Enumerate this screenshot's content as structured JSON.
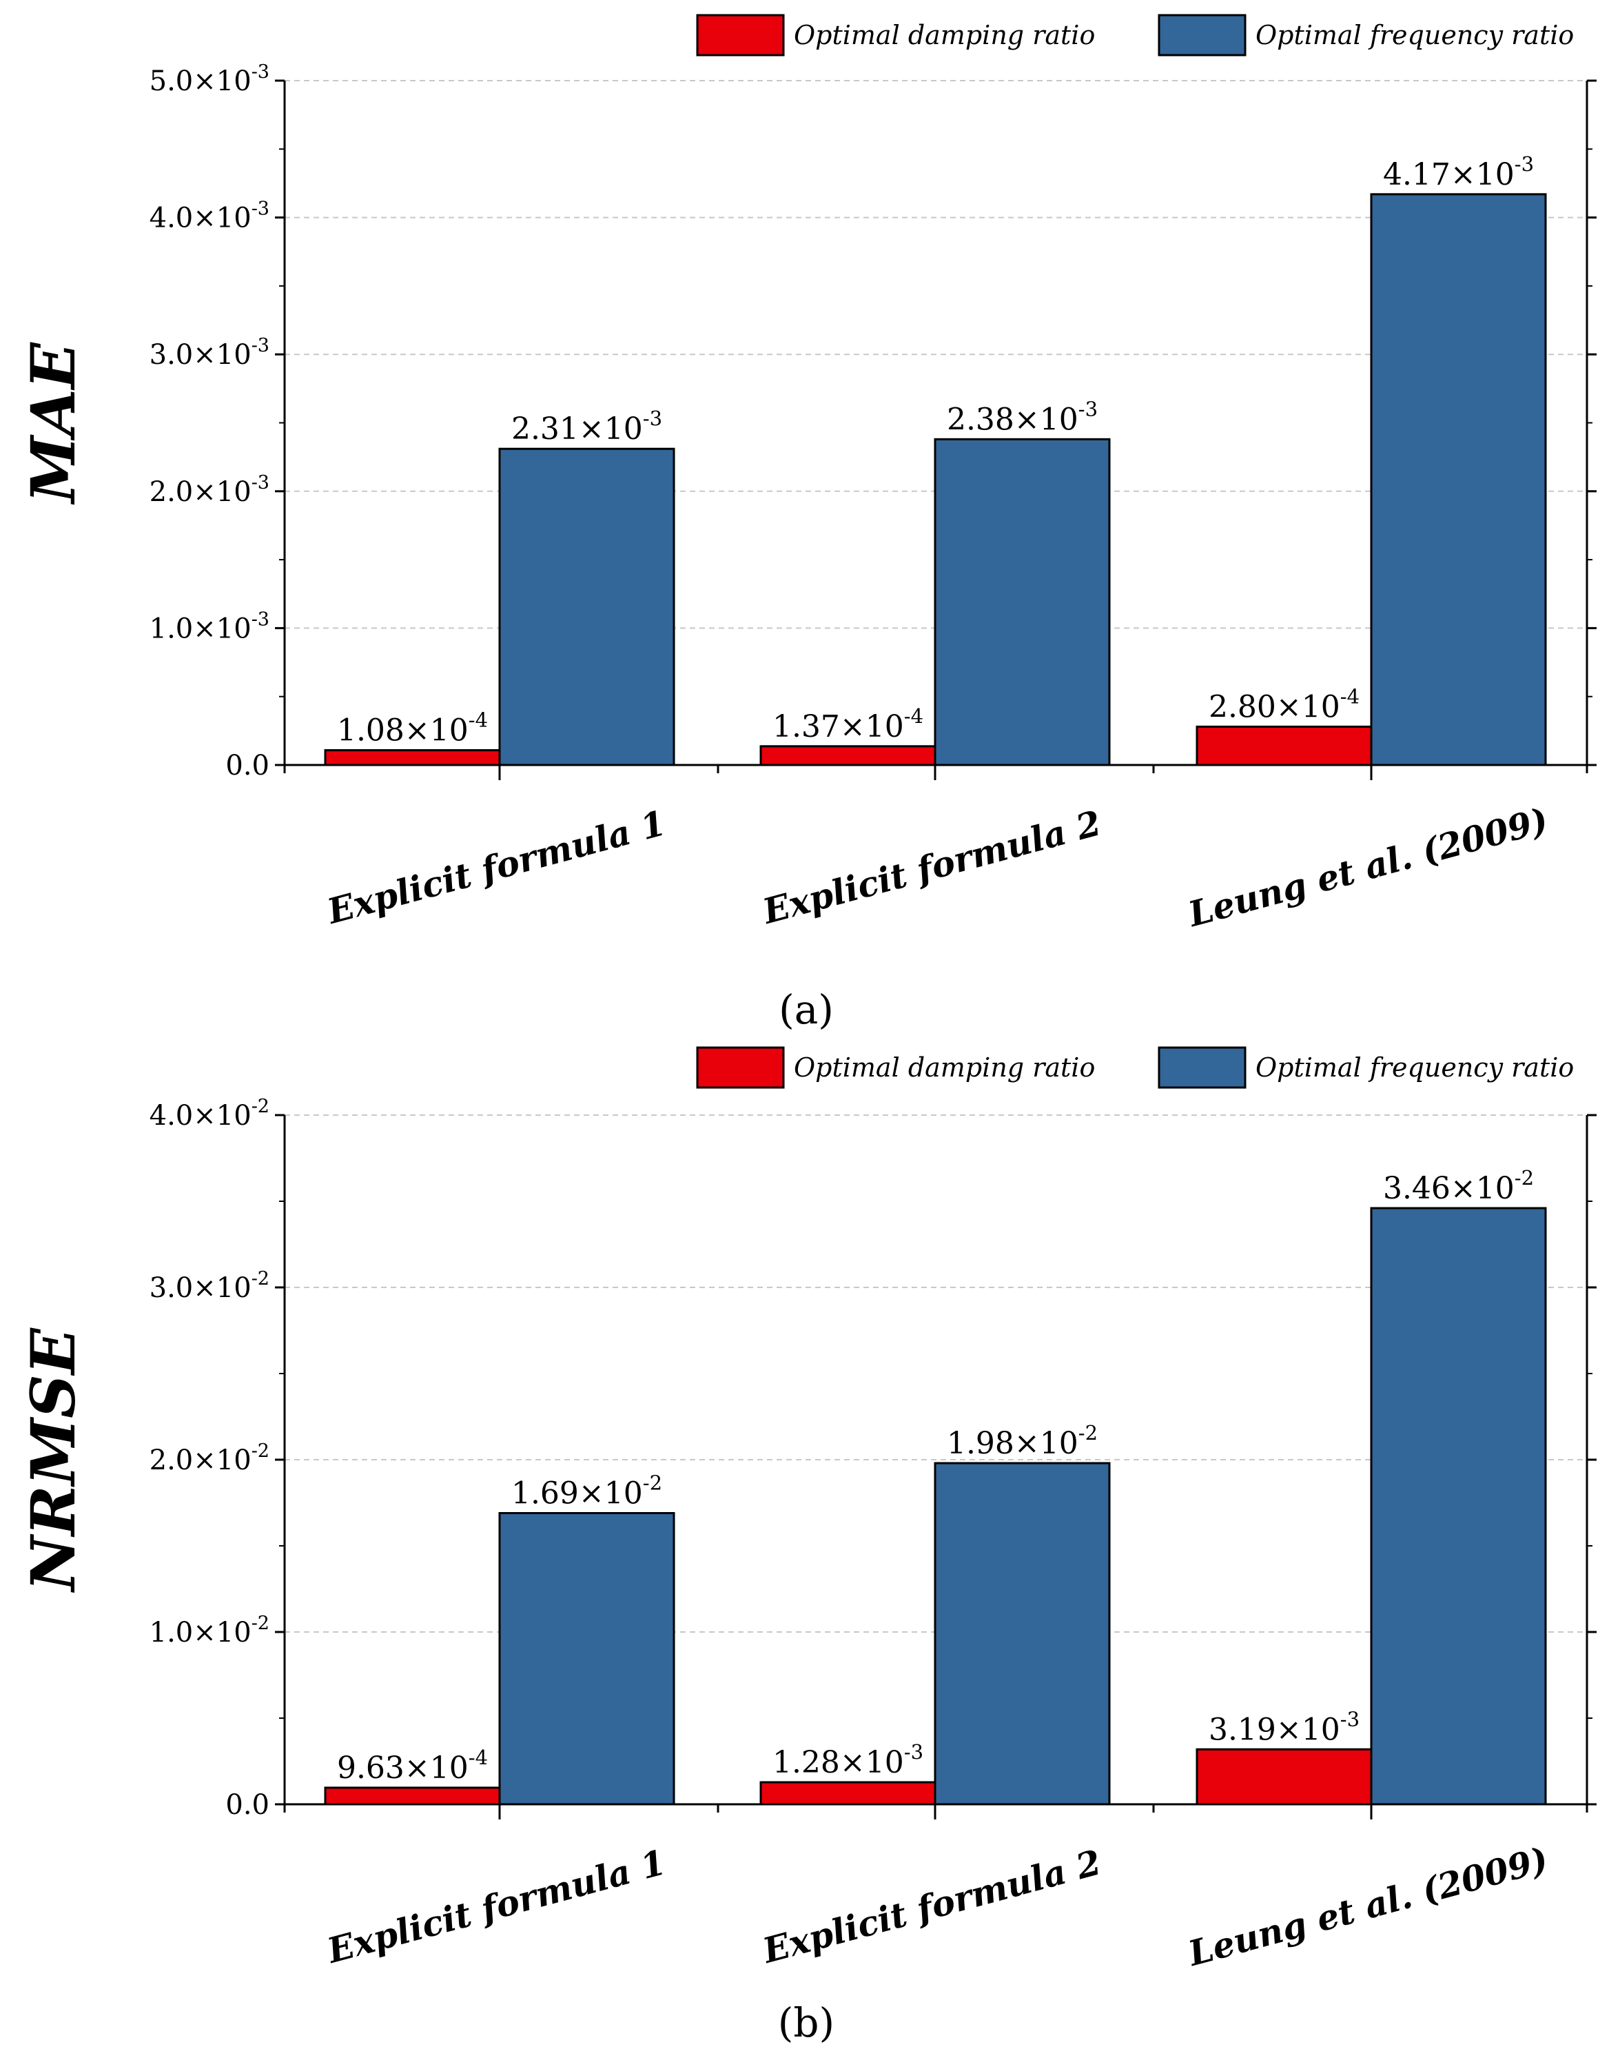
{
  "figure_labels": [
    "(a)",
    "(b)"
  ],
  "colors": {
    "damping": "#E8000B",
    "frequency": "#336699",
    "grid": "#C8C8C8",
    "axis": "#000000"
  },
  "chart_data": [
    {
      "type": "bar",
      "panel": "(a)",
      "ylabel": "MAE",
      "xlabel": "",
      "categories": [
        "Explicit formula 1",
        "Explicit formula 2",
        "Leung et al. (2009)"
      ],
      "series": [
        {
          "name": "Optimal damping ratio",
          "values": [
            0.000108,
            0.000137,
            0.00028
          ],
          "labels": [
            {
              "m": "1.08",
              "e": "-4"
            },
            {
              "m": "1.37",
              "e": "-4"
            },
            {
              "m": "2.80",
              "e": "-4"
            }
          ]
        },
        {
          "name": "Optimal frequency ratio",
          "values": [
            0.00231,
            0.00238,
            0.00417
          ],
          "labels": [
            {
              "m": "2.31",
              "e": "-3"
            },
            {
              "m": "2.38",
              "e": "-3"
            },
            {
              "m": "4.17",
              "e": "-3"
            }
          ]
        }
      ],
      "ylim": [
        0,
        0.005
      ],
      "yticks": [
        {
          "v": 0,
          "m": "0.0",
          "e": ""
        },
        {
          "v": 0.001,
          "m": "1.0",
          "e": "-3"
        },
        {
          "v": 0.002,
          "m": "2.0",
          "e": "-3"
        },
        {
          "v": 0.003,
          "m": "3.0",
          "e": "-3"
        },
        {
          "v": 0.004,
          "m": "4.0",
          "e": "-3"
        },
        {
          "v": 0.005,
          "m": "5.0",
          "e": "-3"
        }
      ],
      "legend_position": "top-right",
      "grid": true
    },
    {
      "type": "bar",
      "panel": "(b)",
      "ylabel": "NRMSE",
      "xlabel": "",
      "categories": [
        "Explicit formula 1",
        "Explicit formula 2",
        "Leung et al. (2009)"
      ],
      "series": [
        {
          "name": "Optimal damping ratio",
          "values": [
            0.000963,
            0.00128,
            0.00319
          ],
          "labels": [
            {
              "m": "9.63",
              "e": "-4"
            },
            {
              "m": "1.28",
              "e": "-3"
            },
            {
              "m": "3.19",
              "e": "-3"
            }
          ]
        },
        {
          "name": "Optimal frequency ratio",
          "values": [
            0.0169,
            0.0198,
            0.0346
          ],
          "labels": [
            {
              "m": "1.69",
              "e": "-2"
            },
            {
              "m": "1.98",
              "e": "-2"
            },
            {
              "m": "3.46",
              "e": "-2"
            }
          ]
        }
      ],
      "ylim": [
        0,
        0.04
      ],
      "yticks": [
        {
          "v": 0,
          "m": "0.0",
          "e": ""
        },
        {
          "v": 0.01,
          "m": "1.0",
          "e": "-2"
        },
        {
          "v": 0.02,
          "m": "2.0",
          "e": "-2"
        },
        {
          "v": 0.03,
          "m": "3.0",
          "e": "-2"
        },
        {
          "v": 0.04,
          "m": "4.0",
          "e": "-2"
        }
      ],
      "legend_position": "top-right",
      "grid": true
    }
  ]
}
